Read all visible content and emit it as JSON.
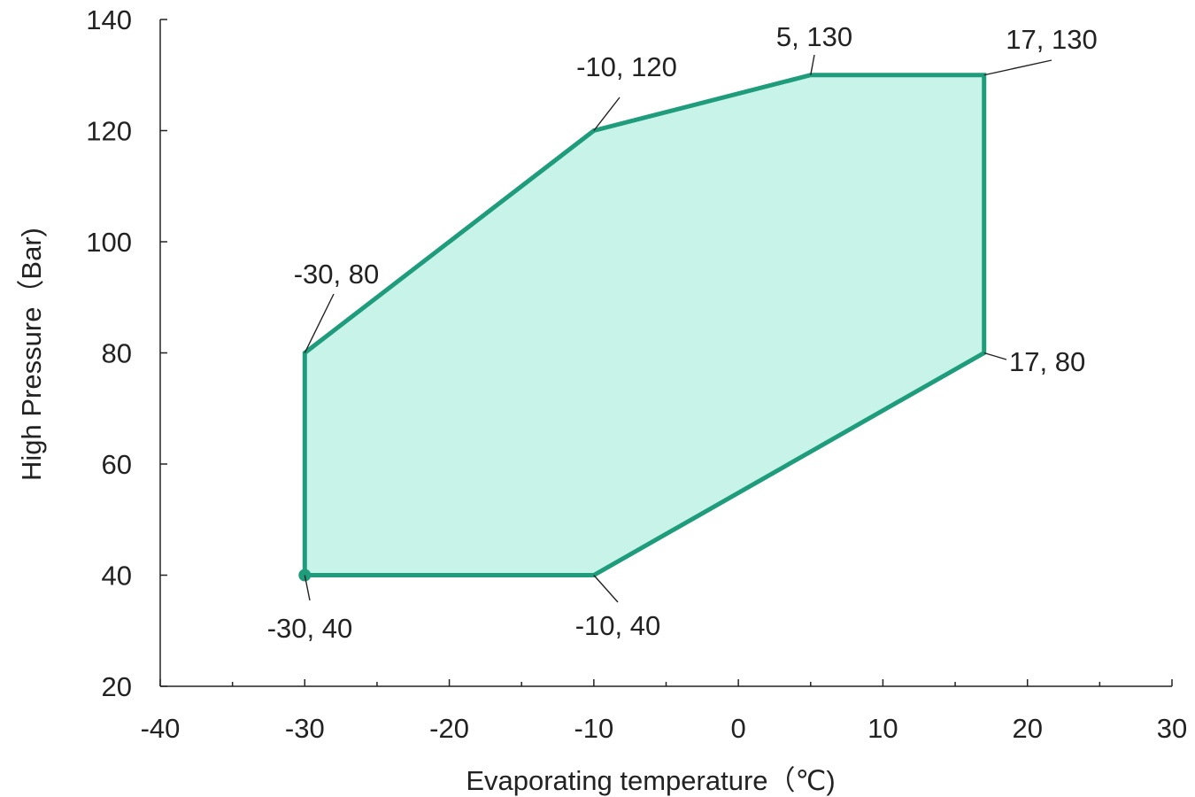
{
  "chart_data": {
    "type": "area",
    "title": "",
    "xlabel": "Evaporating temperature（℃)",
    "ylabel": "High Pressure（Bar)",
    "xlim": [
      -40,
      30
    ],
    "ylim": [
      20,
      140
    ],
    "x_ticks": [
      "-40",
      "-30",
      "-20",
      "-10",
      "0",
      "10",
      "20",
      "30"
    ],
    "y_ticks": [
      "20",
      "40",
      "60",
      "80",
      "100",
      "120",
      "140"
    ],
    "grid": false,
    "legend": "none",
    "series": [
      {
        "x": [
          -30,
          -30,
          -10,
          5,
          17,
          17,
          -10
        ],
        "y": [
          40,
          80,
          120,
          130,
          130,
          80,
          40
        ]
      }
    ],
    "annotations": [
      {
        "text": "-30, 40",
        "x": -30,
        "y": 40
      },
      {
        "text": "-30, 80",
        "x": -30,
        "y": 80
      },
      {
        "text": "-10, 120",
        "x": -10,
        "y": 120
      },
      {
        "text": "5, 130",
        "x": 5,
        "y": 130
      },
      {
        "text": "17, 130",
        "x": 17,
        "y": 130
      },
      {
        "text": "17, 80",
        "x": 17,
        "y": 80
      },
      {
        "text": "-10, 40",
        "x": -10,
        "y": 40
      }
    ],
    "colors": {
      "line": "#1e9c7c",
      "fill": "#c8f3e8",
      "axis": "#222222"
    }
  }
}
